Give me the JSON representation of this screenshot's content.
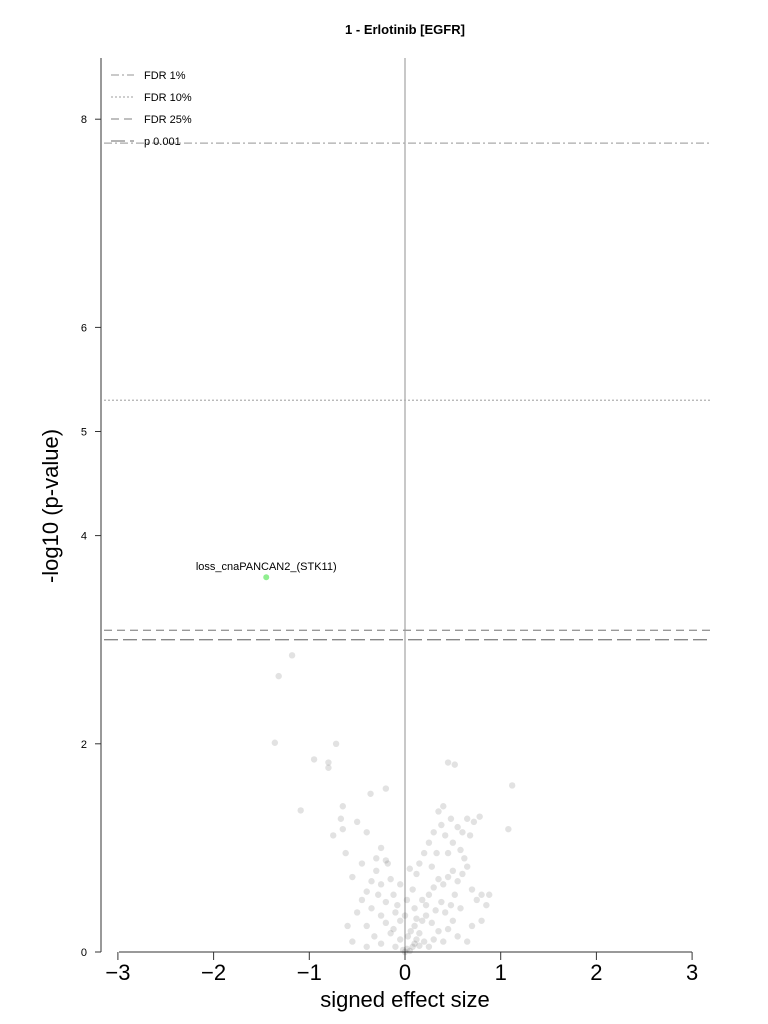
{
  "chart_data": {
    "type": "scatter",
    "title": "1 - Erlotinib [EGFR]",
    "xlabel": "signed effect size",
    "ylabel": "-log10 (p-value)",
    "xlim": [
      -3.15,
      3.2
    ],
    "ylim": [
      0,
      8.6
    ],
    "x_ticks": [
      -3,
      -2,
      -1,
      0,
      1,
      2,
      3
    ],
    "y_ticks": [
      0,
      2,
      4,
      5,
      6,
      8
    ],
    "vertical_reference_x": 0,
    "legend_position": "top-left",
    "thresholds": [
      {
        "name": "FDR 1%",
        "y": 7.77,
        "style": "dashdot",
        "color": "#aaaaaa"
      },
      {
        "name": "FDR 10%",
        "y": 5.3,
        "style": "dotted",
        "color": "#b0b0b0"
      },
      {
        "name": "FDR 25%",
        "y": 3.09,
        "style": "dashed",
        "color": "#999999"
      },
      {
        "name": "p 0.001",
        "y": 3.0,
        "style": "longdash",
        "color": "#888888"
      }
    ],
    "highlighted_points": [
      {
        "x": -1.45,
        "y": 3.6,
        "label": "loss_cnaPANCAN2_(STK11)",
        "color": "#90ee90"
      }
    ],
    "background_points_color": "#333333",
    "background_points": [
      [
        -1.18,
        2.85
      ],
      [
        -1.32,
        2.65
      ],
      [
        -1.36,
        2.01
      ],
      [
        -0.72,
        2.0
      ],
      [
        -0.95,
        1.85
      ],
      [
        -0.8,
        1.82
      ],
      [
        -0.8,
        1.77
      ],
      [
        -1.09,
        1.36
      ],
      [
        -0.65,
        1.4
      ],
      [
        -0.36,
        1.52
      ],
      [
        -0.2,
        1.57
      ],
      [
        -0.67,
        1.28
      ],
      [
        -0.5,
        1.25
      ],
      [
        -0.65,
        1.18
      ],
      [
        -0.75,
        1.12
      ],
      [
        -0.4,
        1.15
      ],
      [
        -0.25,
        1.0
      ],
      [
        -0.3,
        0.9
      ],
      [
        -0.45,
        0.85
      ],
      [
        -0.2,
        0.88
      ],
      [
        -0.18,
        0.85
      ],
      [
        -0.62,
        0.95
      ],
      [
        -0.55,
        0.72
      ],
      [
        -0.35,
        0.68
      ],
      [
        -0.25,
        0.65
      ],
      [
        -0.15,
        0.7
      ],
      [
        -0.4,
        0.58
      ],
      [
        -0.45,
        0.5
      ],
      [
        -0.28,
        0.55
      ],
      [
        -0.12,
        0.55
      ],
      [
        -0.2,
        0.48
      ],
      [
        -0.35,
        0.42
      ],
      [
        -0.5,
        0.38
      ],
      [
        -0.1,
        0.38
      ],
      [
        -0.25,
        0.35
      ],
      [
        -0.6,
        0.25
      ],
      [
        -0.4,
        0.25
      ],
      [
        -0.2,
        0.28
      ],
      [
        -0.05,
        0.3
      ],
      [
        -0.32,
        0.15
      ],
      [
        -0.15,
        0.18
      ],
      [
        -0.05,
        0.12
      ],
      [
        -0.25,
        0.08
      ],
      [
        -0.1,
        0.05
      ],
      [
        -0.4,
        0.05
      ],
      [
        -0.55,
        0.1
      ],
      [
        -0.02,
        0.02
      ],
      [
        0.0,
        0.0
      ],
      [
        0.02,
        0.03
      ],
      [
        0.05,
        0.01
      ],
      [
        0.08,
        0.05
      ],
      [
        0.1,
        0.08
      ],
      [
        0.12,
        0.12
      ],
      [
        0.15,
        0.06
      ],
      [
        0.03,
        0.15
      ],
      [
        0.06,
        0.2
      ],
      [
        0.1,
        0.25
      ],
      [
        0.15,
        0.18
      ],
      [
        0.2,
        0.1
      ],
      [
        0.25,
        0.05
      ],
      [
        0.3,
        0.12
      ],
      [
        0.18,
        0.3
      ],
      [
        0.22,
        0.35
      ],
      [
        0.28,
        0.28
      ],
      [
        0.35,
        0.2
      ],
      [
        0.4,
        0.1
      ],
      [
        0.45,
        0.22
      ],
      [
        0.5,
        0.3
      ],
      [
        0.55,
        0.15
      ],
      [
        0.32,
        0.4
      ],
      [
        0.38,
        0.48
      ],
      [
        0.42,
        0.38
      ],
      [
        0.48,
        0.45
      ],
      [
        0.52,
        0.55
      ],
      [
        0.58,
        0.42
      ],
      [
        0.25,
        0.55
      ],
      [
        0.3,
        0.62
      ],
      [
        0.35,
        0.7
      ],
      [
        0.4,
        0.65
      ],
      [
        0.45,
        0.72
      ],
      [
        0.5,
        0.78
      ],
      [
        0.55,
        0.68
      ],
      [
        0.6,
        0.75
      ],
      [
        0.65,
        0.82
      ],
      [
        0.7,
        0.6
      ],
      [
        0.75,
        0.5
      ],
      [
        0.8,
        0.55
      ],
      [
        0.85,
        0.45
      ],
      [
        0.62,
        0.9
      ],
      [
        0.58,
        0.98
      ],
      [
        0.5,
        1.05
      ],
      [
        0.45,
        0.95
      ],
      [
        0.42,
        1.12
      ],
      [
        0.38,
        1.22
      ],
      [
        0.3,
        1.15
      ],
      [
        0.25,
        1.05
      ],
      [
        0.2,
        0.95
      ],
      [
        0.15,
        0.85
      ],
      [
        0.12,
        0.75
      ],
      [
        0.05,
        0.8
      ],
      [
        0.55,
        1.2
      ],
      [
        0.65,
        1.28
      ],
      [
        0.72,
        1.25
      ],
      [
        0.78,
        1.3
      ],
      [
        0.68,
        1.12
      ],
      [
        0.6,
        1.15
      ],
      [
        0.35,
        1.35
      ],
      [
        0.4,
        1.4
      ],
      [
        0.48,
        1.28
      ],
      [
        0.45,
        1.82
      ],
      [
        0.52,
        1.8
      ],
      [
        1.12,
        1.6
      ],
      [
        1.08,
        1.18
      ],
      [
        0.88,
        0.55
      ],
      [
        0.8,
        0.3
      ],
      [
        0.7,
        0.25
      ],
      [
        0.65,
        0.1
      ],
      [
        0.02,
        0.5
      ],
      [
        -0.08,
        0.45
      ],
      [
        0.08,
        0.6
      ],
      [
        0.18,
        0.5
      ],
      [
        0.0,
        0.35
      ],
      [
        -0.12,
        0.22
      ],
      [
        0.22,
        0.45
      ],
      [
        0.28,
        0.82
      ],
      [
        0.33,
        0.95
      ],
      [
        -0.05,
        0.65
      ],
      [
        -0.3,
        0.78
      ],
      [
        0.1,
        0.42
      ],
      [
        0.12,
        0.32
      ]
    ]
  }
}
